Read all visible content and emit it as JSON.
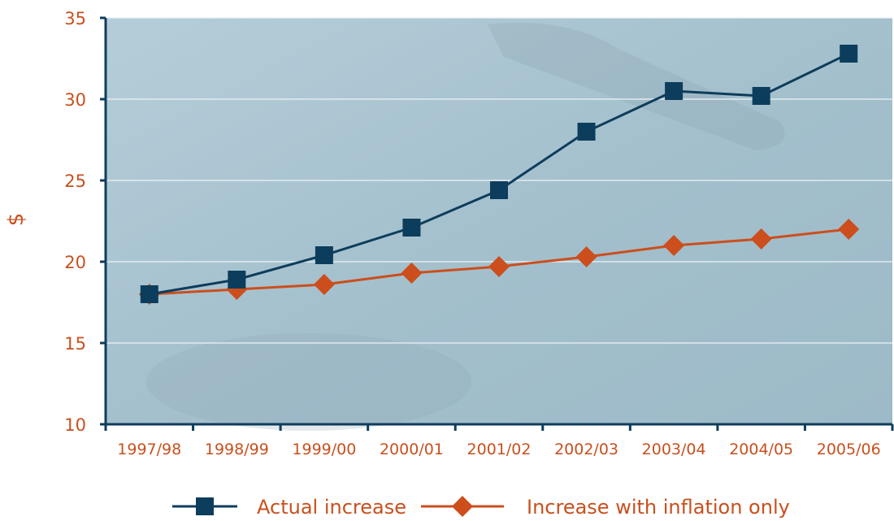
{
  "chart_data": {
    "type": "line",
    "title": "",
    "xlabel": "",
    "ylabel": "$",
    "ylim": [
      10,
      35
    ],
    "yticks": [
      10,
      15,
      20,
      25,
      30,
      35
    ],
    "grid": true,
    "legend_position": "bottom",
    "categories": [
      "1997/98",
      "1998/99",
      "1999/00",
      "2000/01",
      "2001/02",
      "2002/03",
      "2003/04",
      "2004/05",
      "2005/06"
    ],
    "series": [
      {
        "name": "Actual increase",
        "marker": "square",
        "color": "#0d3d5c",
        "values": [
          18.0,
          18.9,
          20.4,
          22.1,
          24.4,
          28.0,
          30.5,
          30.2,
          32.8
        ]
      },
      {
        "name": "Increase with inflation only",
        "marker": "diamond",
        "color": "#cc4e1c",
        "values": [
          18.0,
          18.3,
          18.6,
          19.3,
          19.7,
          20.3,
          21.0,
          21.4,
          22.0
        ]
      }
    ],
    "colors": {
      "plot_background": "#a8c2cf",
      "axis": "#0d3d5c",
      "grid": "#eef3f6",
      "text": "#c8501e"
    }
  }
}
